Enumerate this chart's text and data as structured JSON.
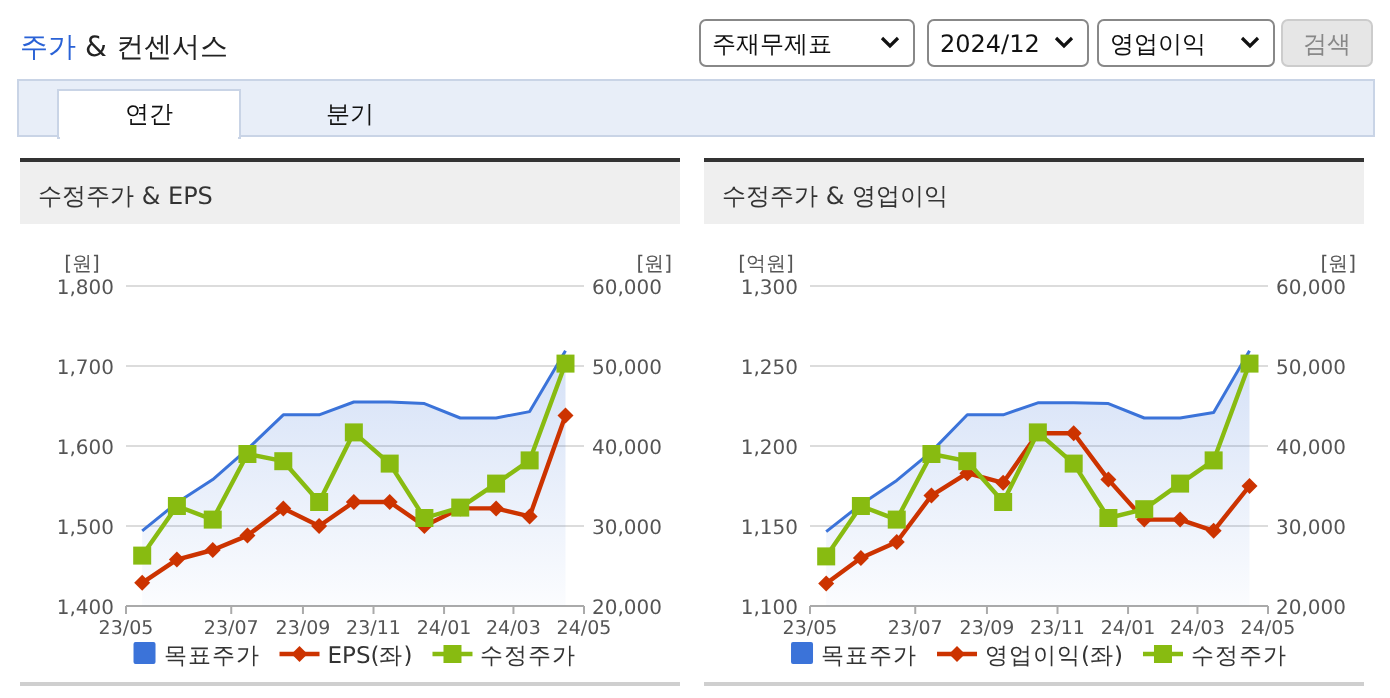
{
  "chart_data": [
    {
      "type": "other",
      "title": "주가 & 컨센서스",
      "annotations": [
        "주재무제표",
        "2024/12",
        "영업이익",
        "검색",
        "연간",
        "분기"
      ]
    },
    {
      "type": "line",
      "title": "수정주가 & EPS",
      "ylabel": "[원]",
      "y2label": "[원]",
      "x": [
        "2023-04-15",
        "2023-05-15",
        "2023-06-15",
        "2023-07-15",
        "2023-08-15",
        "2023-09-15",
        "2023-10-15",
        "2023-11-15",
        "2023-12-15",
        "2024-01-15",
        "2024-02-15",
        "2024-03-15",
        "2024-04-15"
      ],
      "xlim": [
        "2023-04-01",
        "2024-05-01"
      ],
      "xticks": [
        {
          "value": "2023-04-01",
          "label": "23/05"
        },
        {
          "value": "2023-07-01",
          "label": "23/07"
        },
        {
          "value": "2023-09-01",
          "label": "23/09"
        },
        {
          "value": "2023-11-01",
          "label": "23/11"
        },
        {
          "value": "2024-01-01",
          "label": "24/01"
        },
        {
          "value": "2024-03-01",
          "label": "24/03"
        },
        {
          "value": "2024-05-01",
          "label": "24/05"
        }
      ],
      "ylim": [
        1400,
        1800
      ],
      "yticks": [
        {
          "value": 1400,
          "label": "1,400"
        },
        {
          "value": 1500,
          "label": "1,500"
        },
        {
          "value": 1600,
          "label": "1,600"
        },
        {
          "value": 1700,
          "label": "1,700"
        },
        {
          "value": 1800,
          "label": "1,800"
        }
      ],
      "y2lim": [
        20000,
        60000
      ],
      "y2ticks": [
        {
          "value": 20000,
          "label": "20,000"
        },
        {
          "value": 30000,
          "label": "30,000"
        },
        {
          "value": 40000,
          "label": "40,000"
        },
        {
          "value": 50000,
          "label": "50,000"
        },
        {
          "value": 60000,
          "label": "60,000"
        }
      ],
      "grid": "y",
      "legend": "bottom",
      "series": [
        {
          "name": "목표주가",
          "type": "area",
          "axis": "y2",
          "color": "#3b73d9",
          "marker": "none",
          "values": [
            29400,
            32900,
            35800,
            39600,
            43900,
            43900,
            45500,
            45500,
            45300,
            43500,
            43500,
            44300,
            51900
          ]
        },
        {
          "name": "EPS(좌)",
          "type": "line",
          "color": "#cc3300",
          "marker": "diamond",
          "values": [
            1429,
            1458,
            1470,
            1488,
            1522,
            1500,
            1530,
            1530,
            1500,
            1522,
            1522,
            1512,
            1638
          ]
        },
        {
          "name": "수정주가",
          "type": "line",
          "axis": "y2",
          "color": "#88bb11",
          "marker": "square",
          "values": [
            26300,
            32500,
            30800,
            39000,
            38100,
            33000,
            41700,
            37800,
            31000,
            32300,
            35300,
            38200,
            50300
          ]
        }
      ]
    },
    {
      "type": "line",
      "title": "수정주가 & 영업이익",
      "ylabel": "[억원]",
      "y2label": "[원]",
      "x": [
        "2023-04-15",
        "2023-05-15",
        "2023-06-15",
        "2023-07-15",
        "2023-08-15",
        "2023-09-15",
        "2023-10-15",
        "2023-11-15",
        "2023-12-15",
        "2024-01-15",
        "2024-02-15",
        "2024-03-15",
        "2024-04-15"
      ],
      "xlim": [
        "2023-04-01",
        "2024-05-01"
      ],
      "xticks": [
        {
          "value": "2023-04-01",
          "label": "23/05"
        },
        {
          "value": "2023-07-01",
          "label": "23/07"
        },
        {
          "value": "2023-09-01",
          "label": "23/09"
        },
        {
          "value": "2023-11-01",
          "label": "23/11"
        },
        {
          "value": "2024-01-01",
          "label": "24/01"
        },
        {
          "value": "2024-03-01",
          "label": "24/03"
        },
        {
          "value": "2024-05-01",
          "label": "24/05"
        }
      ],
      "ylim": [
        1100,
        1300
      ],
      "yticks": [
        {
          "value": 1100,
          "label": "1,100"
        },
        {
          "value": 1150,
          "label": "1,150"
        },
        {
          "value": 1200,
          "label": "1,200"
        },
        {
          "value": 1250,
          "label": "1,250"
        },
        {
          "value": 1300,
          "label": "1,300"
        }
      ],
      "y2lim": [
        20000,
        60000
      ],
      "y2ticks": [
        {
          "value": 20000,
          "label": "20,000"
        },
        {
          "value": 30000,
          "label": "30,000"
        },
        {
          "value": 40000,
          "label": "40,000"
        },
        {
          "value": 50000,
          "label": "50,000"
        },
        {
          "value": 60000,
          "label": "60,000"
        }
      ],
      "grid": "y",
      "legend": "bottom",
      "series": [
        {
          "name": "목표주가",
          "type": "area",
          "axis": "y2",
          "color": "#3b73d9",
          "marker": "none",
          "values": [
            29300,
            32700,
            35700,
            39300,
            43900,
            43900,
            45400,
            45400,
            45300,
            43500,
            43500,
            44200,
            51900
          ]
        },
        {
          "name": "영업이익(좌)",
          "type": "line",
          "color": "#cc3300",
          "marker": "diamond",
          "values": [
            1114,
            1130,
            1140,
            1169,
            1183,
            1177,
            1208,
            1208,
            1179,
            1154,
            1154,
            1147,
            1175
          ]
        },
        {
          "name": "수정주가",
          "type": "line",
          "axis": "y2",
          "color": "#88bb11",
          "marker": "square",
          "values": [
            26200,
            32500,
            30800,
            39000,
            38100,
            33000,
            41700,
            37800,
            31000,
            32100,
            35300,
            38200,
            50300
          ]
        }
      ]
    }
  ]
}
